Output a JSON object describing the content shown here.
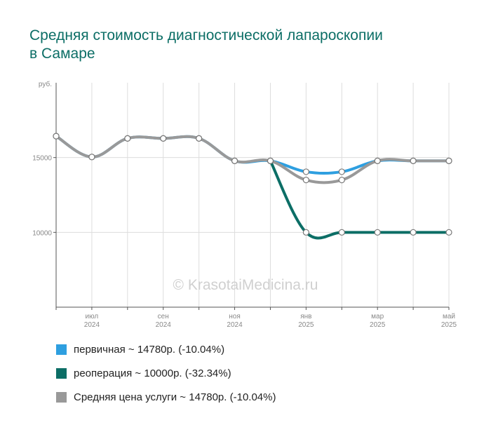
{
  "title": "Средняя стоимость диагностической лапароскопии в Самаре",
  "watermark": "© KrasotaiMedicina.ru",
  "colors": {
    "grid": "#dddddd",
    "axis": "#555555"
  },
  "legend": {
    "items": [
      {
        "label": "первичная ~ 14780р. (-10.04%)",
        "color": "#2e9fe0"
      },
      {
        "label": "реоперация ~ 10000р. (-32.34%)",
        "color": "#0c6e66"
      },
      {
        "label": "Средняя цена услуги ~ 14780р. (-10.04%)",
        "color": "#999999"
      }
    ]
  },
  "chart_data": {
    "type": "line",
    "y_unit_label": "руб.",
    "ylim": [
      5000,
      20000
    ],
    "yticks": [
      10000,
      15000
    ],
    "x": [
      "2024-06",
      "2024-07",
      "2024-08",
      "2024-09",
      "2024-10",
      "2024-11",
      "2024-12",
      "2025-01",
      "2025-02",
      "2025-03",
      "2025-04",
      "2025-05"
    ],
    "xtick_labels": [
      {
        "index": 1,
        "month": "июл",
        "year": "2024"
      },
      {
        "index": 3,
        "month": "сен",
        "year": "2024"
      },
      {
        "index": 5,
        "month": "ноя",
        "year": "2024"
      },
      {
        "index": 7,
        "month": "янв",
        "year": "2025"
      },
      {
        "index": 9,
        "month": "мар",
        "year": "2025"
      },
      {
        "index": 11,
        "month": "май",
        "year": "2025"
      }
    ],
    "grid": true,
    "legend_position": "bottom",
    "series": [
      {
        "name": "первичная ~ 14780р. (-10.04%)",
        "color": "#2e9fe0",
        "values": [
          16430,
          15040,
          16280,
          16280,
          16280,
          14780,
          14780,
          14050,
          14050,
          14780,
          14780,
          14780
        ]
      },
      {
        "name": "реоперация ~ 10000р. (-32.34%)",
        "color": "#0c6e66",
        "values": [
          null,
          null,
          null,
          null,
          null,
          null,
          14780,
          10000,
          10000,
          10000,
          10000,
          10000
        ]
      },
      {
        "name": "Средняя цена услуги ~ 14780р. (-10.04%)",
        "color": "#999999",
        "values": [
          16430,
          15040,
          16280,
          16280,
          16280,
          14780,
          14780,
          13500,
          13500,
          14780,
          14780,
          14780
        ]
      }
    ]
  }
}
